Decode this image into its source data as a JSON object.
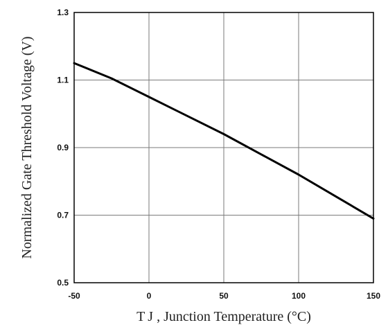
{
  "chart_data": {
    "type": "line",
    "title": "",
    "xlabel": "T J , Junction Temperature (°C)",
    "ylabel": "Normalized Gate Threshold Voltage (V)",
    "xlim": [
      -50,
      150
    ],
    "ylim": [
      0.5,
      1.3
    ],
    "x_ticks": [
      -50,
      0,
      50,
      100,
      150
    ],
    "x_tick_labels": [
      "-50",
      "0",
      "50",
      "100",
      "150"
    ],
    "y_ticks": [
      0.5,
      0.7,
      0.9,
      1.1,
      1.3
    ],
    "y_tick_labels": [
      "0.5",
      "0.7",
      "0.9",
      "1.1",
      "1.3"
    ],
    "grid": true,
    "legend": "none",
    "series": [
      {
        "x": [
          -50,
          -25,
          0,
          25,
          50,
          75,
          100,
          125,
          150
        ],
        "y": [
          1.15,
          1.105,
          1.05,
          0.995,
          0.94,
          0.88,
          0.82,
          0.755,
          0.69
        ],
        "color": "#000000"
      }
    ]
  }
}
